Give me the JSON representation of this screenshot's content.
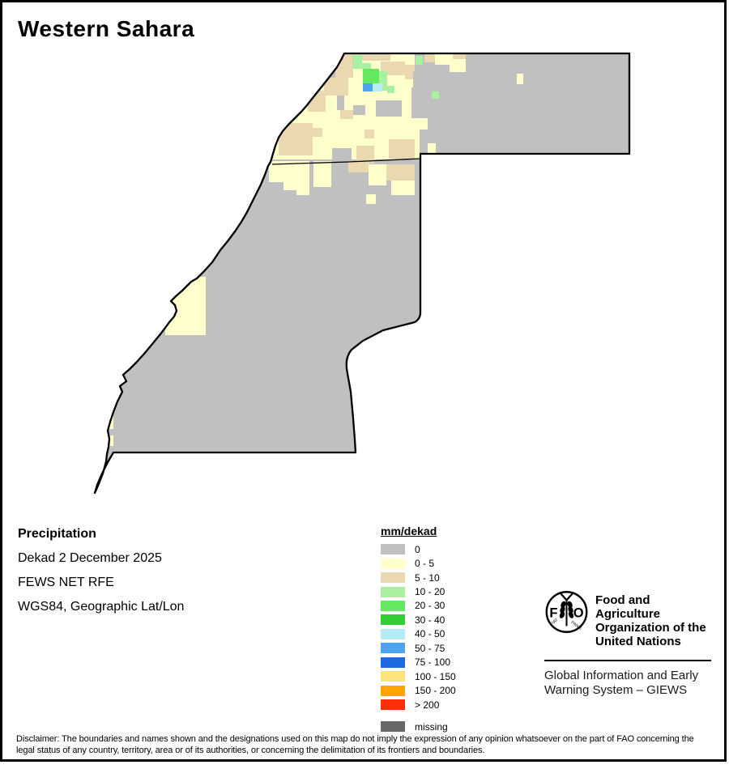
{
  "title": "Western Sahara",
  "info": {
    "heading": "Precipitation",
    "lines": [
      "Dekad 2 December 2025",
      "FEWS NET RFE",
      "WGS84, Geographic Lat/Lon"
    ]
  },
  "legend": {
    "title": "mm/dekad",
    "items": [
      {
        "label": "0",
        "color": "#c0c0c0",
        "gap": false
      },
      {
        "label": "0 - 5",
        "color": "#ffffcc",
        "gap": false
      },
      {
        "label": "5 - 10",
        "color": "#ead8b0",
        "gap": false
      },
      {
        "label": "10 - 20",
        "color": "#abf0a2",
        "gap": false
      },
      {
        "label": "20 - 30",
        "color": "#63e85f",
        "gap": false
      },
      {
        "label": "30 - 40",
        "color": "#33cc33",
        "gap": false
      },
      {
        "label": "40 - 50",
        "color": "#b5ecf8",
        "gap": false
      },
      {
        "label": "50 - 75",
        "color": "#4da3ee",
        "gap": false
      },
      {
        "label": "75 - 100",
        "color": "#1f6ae3",
        "gap": false
      },
      {
        "label": "100 - 150",
        "color": "#fee27e",
        "gap": false
      },
      {
        "label": "150 - 200",
        "color": "#ffa400",
        "gap": false
      },
      {
        "label": "> 200",
        "color": "#ff2f0a",
        "gap": false
      },
      {
        "label": "missing",
        "color": "#696969",
        "gap": true
      }
    ]
  },
  "map": {
    "region": "Western Sahara",
    "units": "mm/dekad",
    "palette": {
      "z": "#c0c0c0",
      "y": "#ffffcc",
      "t": "#ead8b0",
      "g1": "#abf0a2",
      "g2": "#63e85f",
      "g3": "#33cc33",
      "c": "#b5ecf8",
      "b": "#4da3ee"
    },
    "cells": [
      [
        "y",
        424,
        64,
        88,
        32
      ],
      [
        "y",
        335,
        96,
        193,
        101
      ],
      [
        "t",
        424,
        64,
        58,
        11
      ],
      [
        "t",
        524,
        64,
        22,
        13
      ],
      [
        "t",
        558,
        66,
        17,
        17
      ],
      [
        "t",
        414,
        74,
        22,
        22
      ],
      [
        "t",
        400,
        96,
        30,
        22
      ],
      [
        "t",
        380,
        112,
        22,
        26
      ],
      [
        "t",
        470,
        76,
        30,
        17
      ],
      [
        "t",
        500,
        80,
        12,
        18
      ],
      [
        "t",
        344,
        152,
        42,
        40
      ],
      [
        "t",
        386,
        158,
        12,
        11
      ],
      [
        "t",
        420,
        136,
        16,
        11
      ],
      [
        "t",
        450,
        160,
        12,
        11
      ],
      [
        "t",
        440,
        180,
        22,
        22
      ],
      [
        "t",
        480,
        172,
        32,
        24
      ],
      [
        "y",
        537,
        66,
        22,
        14
      ],
      [
        "y",
        555,
        73,
        20,
        16
      ],
      [
        "y",
        638,
        91,
        8,
        13
      ],
      [
        "y",
        526,
        177,
        12,
        18
      ],
      [
        "y",
        204,
        342,
        50,
        72
      ],
      [
        "y",
        129,
        514,
        11,
        16
      ],
      [
        "y",
        129,
        538,
        11,
        13
      ],
      [
        "z",
        416,
        118,
        9,
        18
      ],
      [
        "z",
        436,
        130,
        15,
        12
      ],
      [
        "z",
        464,
        124,
        32,
        20
      ],
      [
        "z",
        508,
        108,
        20,
        38
      ],
      [
        "z",
        410,
        183,
        24,
        24
      ],
      [
        "z",
        518,
        160,
        10,
        37
      ],
      [
        "z",
        510,
        88,
        18,
        20
      ],
      [
        "y",
        332,
        199,
        28,
        26
      ],
      [
        "y",
        350,
        199,
        32,
        36
      ],
      [
        "y",
        366,
        231,
        16,
        10
      ],
      [
        "y",
        387,
        199,
        22,
        32
      ],
      [
        "t",
        430,
        199,
        26,
        14
      ],
      [
        "y",
        455,
        203,
        22,
        26
      ],
      [
        "t",
        477,
        203,
        35,
        20
      ],
      [
        "y",
        483,
        223,
        29,
        18
      ],
      [
        "y",
        452,
        240,
        12,
        12
      ],
      [
        "g1",
        435,
        68,
        12,
        17
      ],
      [
        "g1",
        447,
        78,
        11,
        8
      ],
      [
        "g2",
        448,
        85,
        20,
        18
      ],
      [
        "g1",
        468,
        88,
        10,
        24
      ],
      [
        "g1",
        478,
        106,
        9,
        9
      ],
      [
        "g1",
        513,
        69,
        9,
        11
      ],
      [
        "g1",
        533,
        113,
        9,
        9
      ],
      [
        "b",
        448,
        103,
        12,
        10
      ],
      [
        "c",
        460,
        103,
        12,
        10
      ]
    ]
  },
  "fao": {
    "org_lines": [
      "Food and Agriculture",
      "Organization of the",
      "United Nations"
    ],
    "giews_lines": [
      "Global Information and Early",
      "Warning System – GIEWS"
    ],
    "logo_letters": {
      "f": "F",
      "o": "O",
      "fiat": "FIAT",
      "panis": "PANIS"
    }
  },
  "disclaimer": "Disclaimer: The boundaries and names shown and the designations used on this map do not imply the expression of any opinion whatsoever on the part of FAO concerning the legal status of any country, territory, area or of its authorities, or concerning the delimitation of its frontiers and boundaries."
}
